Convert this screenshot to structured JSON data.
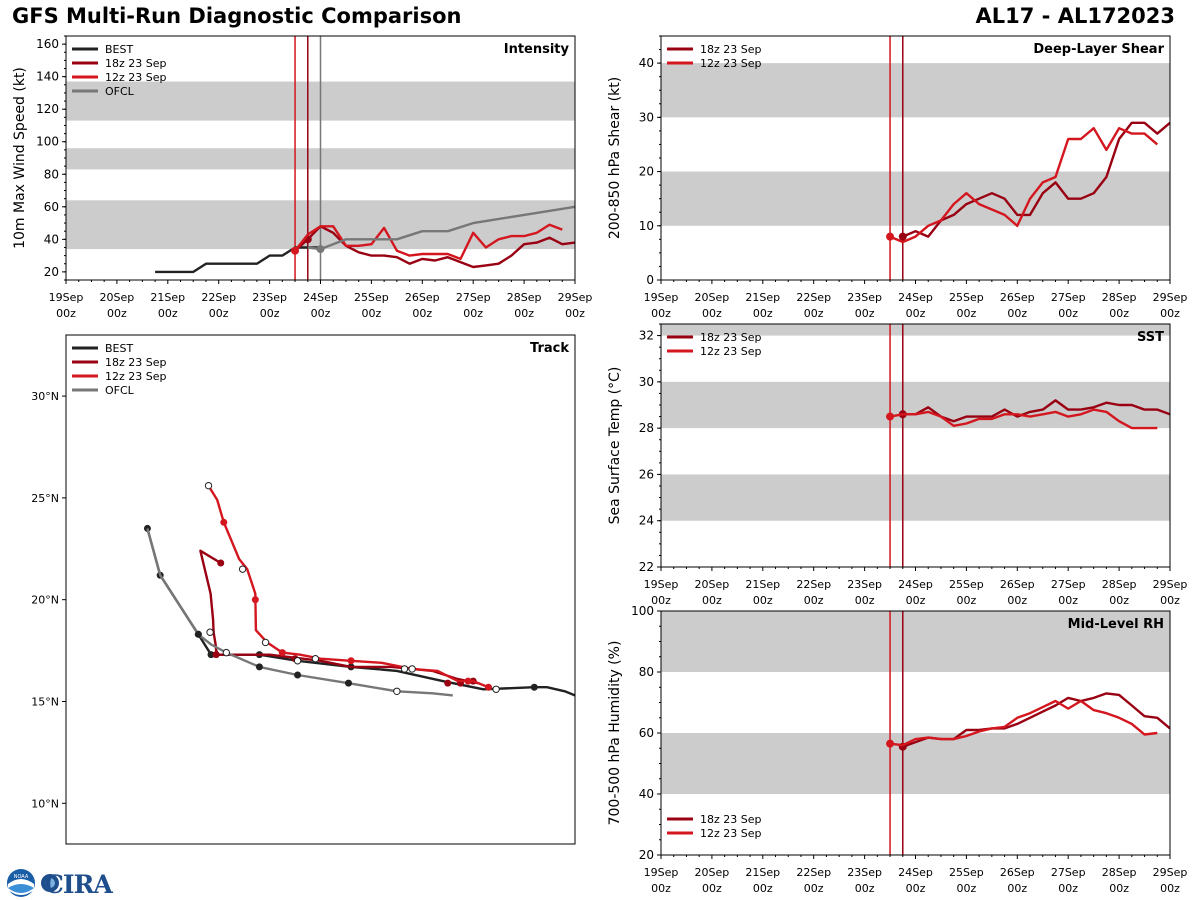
{
  "page": {
    "title": "GFS Multi-Run Diagnostic Comparison",
    "storm": "AL17 - AL172023",
    "logo_text": "CIRA",
    "noaa_text": "NOAA"
  },
  "colors": {
    "best": "#222222",
    "run18z": "#990012",
    "run12z": "#d4161f",
    "ofcl": "#777777",
    "band": "#cccccc"
  },
  "legend": {
    "best": "BEST",
    "run18z": "18z 23 Sep",
    "run12z": "12z 23 Sep",
    "ofcl": "OFCL"
  },
  "time_ticks": [
    "19Sep\n00z",
    "20Sep\n00z",
    "21Sep\n00z",
    "22Sep\n00z",
    "23Sep\n00z",
    "24Sep\n00z",
    "25Sep\n00z",
    "26Sep\n00z",
    "27Sep\n00z",
    "28Sep\n00z",
    "29Sep\n00z"
  ],
  "chart_data": [
    {
      "id": "intensity",
      "type": "line",
      "title": "Intensity",
      "ylabel": "10m Max Wind Speed (kt)",
      "xlim": [
        0,
        10
      ],
      "ylim": [
        15,
        165
      ],
      "yticks": [
        20,
        40,
        60,
        80,
        100,
        120,
        140,
        160
      ],
      "bands": [
        [
          34,
          64
        ],
        [
          83,
          96
        ],
        [
          113,
          137
        ]
      ],
      "vlines": [
        {
          "x": 4.5,
          "series": "run12z"
        },
        {
          "x": 4.75,
          "series": "run18z"
        },
        {
          "x": 5.0,
          "series": "ofcl"
        }
      ],
      "series": [
        {
          "key": "best",
          "name": "BEST",
          "x": [
            1.75,
            2.0,
            2.25,
            2.5,
            2.75,
            3.0,
            3.25,
            3.5,
            3.75,
            4.0,
            4.25,
            4.5,
            4.75,
            5.0
          ],
          "y": [
            20,
            20,
            20,
            20,
            25,
            25,
            25,
            25,
            25,
            30,
            30,
            35,
            35,
            35
          ],
          "markers": []
        },
        {
          "key": "run18z",
          "name": "18z 23 Sep",
          "x": [
            4.5,
            4.75,
            5.0,
            5.25,
            5.5,
            5.75,
            6.0,
            6.25,
            6.5,
            6.75,
            7.0,
            7.25,
            7.5,
            7.75,
            8.0,
            8.25,
            8.5,
            8.75,
            9.0,
            9.25,
            9.5,
            9.75,
            10.0
          ],
          "y": [
            33,
            40,
            48,
            44,
            36,
            32,
            30,
            30,
            29,
            25,
            28,
            27,
            29,
            26,
            23,
            24,
            25,
            30,
            37,
            38,
            41,
            37,
            38
          ],
          "markers": [
            4.75
          ]
        },
        {
          "key": "run12z",
          "name": "12z 23 Sep",
          "x": [
            4.5,
            4.75,
            5.0,
            5.25,
            5.5,
            5.75,
            6.0,
            6.25,
            6.5,
            6.75,
            7.0,
            7.25,
            7.5,
            7.75,
            8.0,
            8.25,
            8.5,
            8.75,
            9.0,
            9.25,
            9.5,
            9.75
          ],
          "y": [
            33,
            43,
            48,
            48,
            36,
            36,
            37,
            47,
            33,
            30,
            31,
            31,
            31,
            28,
            44,
            35,
            40,
            42,
            42,
            44,
            49,
            46
          ],
          "markers": [
            4.5
          ]
        },
        {
          "key": "ofcl",
          "name": "OFCL",
          "x": [
            4.75,
            5.0,
            5.5,
            6.0,
            6.5,
            7.0,
            7.5,
            8.0,
            9.0,
            10.0
          ],
          "y": [
            35,
            34,
            40,
            40,
            40,
            45,
            45,
            50,
            55,
            60
          ],
          "markers": [
            5.0
          ]
        }
      ]
    },
    {
      "id": "shear",
      "type": "line",
      "title": "Deep-Layer Shear",
      "ylabel": "200-850 hPa Shear (kt)",
      "xlim": [
        0,
        10
      ],
      "ylim": [
        0,
        45
      ],
      "yticks": [
        0,
        10,
        20,
        30,
        40
      ],
      "bands": [
        [
          10,
          20
        ],
        [
          30,
          40
        ]
      ],
      "vlines": [
        {
          "x": 4.5,
          "series": "run12z"
        },
        {
          "x": 4.75,
          "series": "run18z"
        }
      ],
      "series": [
        {
          "key": "run18z",
          "name": "18z 23 Sep",
          "x": [
            4.75,
            5.0,
            5.25,
            5.5,
            5.75,
            6.0,
            6.25,
            6.5,
            6.75,
            7.0,
            7.25,
            7.5,
            7.75,
            8.0,
            8.25,
            8.5,
            8.75,
            9.0,
            9.25,
            9.5,
            9.75,
            10.0
          ],
          "y": [
            8,
            9,
            8,
            11,
            12,
            14,
            15,
            16,
            15,
            12,
            12,
            16,
            18,
            15,
            15,
            16,
            19,
            26,
            29,
            29,
            27,
            29
          ],
          "markers": [
            4.75
          ]
        },
        {
          "key": "run12z",
          "name": "12z 23 Sep",
          "x": [
            4.5,
            4.75,
            5.0,
            5.25,
            5.5,
            5.75,
            6.0,
            6.25,
            6.5,
            6.75,
            7.0,
            7.25,
            7.5,
            7.75,
            8.0,
            8.25,
            8.5,
            8.75,
            9.0,
            9.25,
            9.5,
            9.75
          ],
          "y": [
            8,
            7,
            8,
            10,
            11,
            14,
            16,
            14,
            13,
            12,
            10,
            15,
            18,
            19,
            26,
            26,
            28,
            24,
            28,
            27,
            27,
            25
          ],
          "markers": [
            4.5
          ]
        }
      ]
    },
    {
      "id": "sst",
      "type": "line",
      "title": "SST",
      "ylabel": "Sea Surface Temp (°C)",
      "xlim": [
        0,
        10
      ],
      "ylim": [
        22,
        32.5
      ],
      "yticks": [
        22,
        24,
        26,
        28,
        30,
        32
      ],
      "bands": [
        [
          24,
          26
        ],
        [
          28,
          30
        ],
        [
          32,
          34
        ]
      ],
      "vlines": [
        {
          "x": 4.5,
          "series": "run12z"
        },
        {
          "x": 4.75,
          "series": "run18z"
        }
      ],
      "series": [
        {
          "key": "run18z",
          "name": "18z 23 Sep",
          "x": [
            4.75,
            5.0,
            5.25,
            5.5,
            5.75,
            6.0,
            6.25,
            6.5,
            6.75,
            7.0,
            7.25,
            7.5,
            7.75,
            8.0,
            8.25,
            8.5,
            8.75,
            9.0,
            9.25,
            9.5,
            9.75,
            10.0
          ],
          "y": [
            28.6,
            28.6,
            28.9,
            28.5,
            28.3,
            28.5,
            28.5,
            28.5,
            28.8,
            28.5,
            28.7,
            28.8,
            29.2,
            28.8,
            28.8,
            28.9,
            29.1,
            29.0,
            29.0,
            28.8,
            28.8,
            28.6
          ],
          "markers": [
            4.75
          ]
        },
        {
          "key": "run12z",
          "name": "12z 23 Sep",
          "x": [
            4.5,
            4.75,
            5.0,
            5.25,
            5.5,
            5.75,
            6.0,
            6.25,
            6.5,
            6.75,
            7.0,
            7.25,
            7.5,
            7.75,
            8.0,
            8.25,
            8.5,
            8.75,
            9.0,
            9.25,
            9.5,
            9.75
          ],
          "y": [
            28.5,
            28.6,
            28.6,
            28.7,
            28.5,
            28.1,
            28.2,
            28.4,
            28.4,
            28.6,
            28.6,
            28.5,
            28.6,
            28.7,
            28.5,
            28.6,
            28.8,
            28.7,
            28.3,
            28.0,
            28.0,
            28.0
          ],
          "markers": [
            4.5
          ]
        }
      ]
    },
    {
      "id": "rh",
      "type": "line",
      "title": "Mid-Level RH",
      "ylabel": "700-500 hPa Humidity (%)",
      "xlim": [
        0,
        10
      ],
      "ylim": [
        20,
        100
      ],
      "yticks": [
        20,
        40,
        60,
        80,
        100
      ],
      "bands": [
        [
          40,
          60
        ],
        [
          80,
          100
        ]
      ],
      "vlines": [
        {
          "x": 4.5,
          "series": "run12z"
        },
        {
          "x": 4.75,
          "series": "run18z"
        }
      ],
      "series": [
        {
          "key": "run18z",
          "name": "18z 23 Sep",
          "x": [
            4.75,
            5.0,
            5.25,
            5.5,
            5.75,
            6.0,
            6.25,
            6.5,
            6.75,
            7.0,
            7.25,
            7.5,
            7.75,
            8.0,
            8.25,
            8.5,
            8.75,
            9.0,
            9.25,
            9.5,
            9.75,
            10.0
          ],
          "y": [
            55.5,
            57,
            58.5,
            58,
            58,
            61,
            61,
            61.5,
            61.5,
            63,
            65,
            67,
            69,
            71.5,
            70.5,
            71.5,
            73,
            72.5,
            69,
            65.5,
            65,
            61.5
          ],
          "markers": [
            4.75
          ]
        },
        {
          "key": "run12z",
          "name": "12z 23 Sep",
          "x": [
            4.5,
            4.75,
            5.0,
            5.25,
            5.5,
            5.75,
            6.0,
            6.25,
            6.5,
            6.75,
            7.0,
            7.25,
            7.5,
            7.75,
            8.0,
            8.25,
            8.5,
            8.75,
            9.0,
            9.25,
            9.5,
            9.75
          ],
          "y": [
            56.5,
            56,
            58,
            58.5,
            58,
            58,
            59,
            60.5,
            61.5,
            62,
            65,
            66.5,
            68.5,
            70.5,
            68,
            70.5,
            67.5,
            66.5,
            65,
            63,
            59.5,
            60
          ],
          "markers": [
            4.5
          ]
        }
      ]
    },
    {
      "id": "track",
      "type": "line",
      "title": "Track",
      "ylabel": "",
      "xlim": [
        0,
        10
      ],
      "ylim": [
        8,
        33
      ],
      "yticks": [
        10,
        15,
        20,
        25,
        30
      ],
      "ytick_labels": [
        "10°N",
        "15°N",
        "20°N",
        "25°N",
        "30°N"
      ],
      "series": [
        {
          "key": "best",
          "name": "BEST",
          "x": [
            1.6,
            1.85,
            2.6,
            2.85,
            2.9,
            3.1,
            3.8,
            4.55,
            5.6,
            6.5,
            7.4,
            8.2,
            9.2,
            9.45,
            9.8,
            10.0
          ],
          "y": [
            23.5,
            21.2,
            18.3,
            17.3,
            17.3,
            17.3,
            17.3,
            17.0,
            16.7,
            16.5,
            16.0,
            15.6,
            15.7,
            15.7,
            15.5,
            15.3
          ],
          "filled": [
            [
              1.6,
              23.5
            ],
            [
              1.85,
              21.2
            ],
            [
              2.6,
              18.3
            ],
            [
              2.85,
              17.3
            ],
            [
              3.8,
              17.3
            ],
            [
              5.6,
              16.7
            ],
            [
              9.2,
              15.7
            ]
          ],
          "open": []
        },
        {
          "key": "run18z",
          "name": "18z 23 Sep",
          "x": [
            3.04,
            2.64,
            2.84,
            2.89,
            2.9,
            2.94,
            2.95,
            3.0,
            3.25,
            4.0,
            5.0,
            5.6,
            6.4,
            7.2,
            7.7,
            8.1
          ],
          "y": [
            21.8,
            22.4,
            20.3,
            19.0,
            18.4,
            17.8,
            17.5,
            17.3,
            17.3,
            17.3,
            17.0,
            16.7,
            16.7,
            16.5,
            16.1,
            15.9
          ],
          "filled": [
            [
              3.04,
              21.8
            ],
            [
              2.95,
              17.3
            ],
            [
              4.5,
              17.1
            ],
            [
              7.5,
              15.9
            ],
            [
              7.75,
              15.9
            ],
            [
              8.0,
              16.0
            ]
          ],
          "open": []
        },
        {
          "key": "run12z",
          "name": "12z 23 Sep",
          "x": [
            2.8,
            2.97,
            3.1,
            3.4,
            3.56,
            3.72,
            3.73,
            3.95,
            4.25,
            4.6,
            5.0,
            5.6,
            6.2,
            6.8,
            7.3,
            7.7,
            8.0,
            8.3
          ],
          "y": [
            25.6,
            24.9,
            23.8,
            22.0,
            21.5,
            20.3,
            18.5,
            17.9,
            17.4,
            17.3,
            17.1,
            17.0,
            16.9,
            16.6,
            16.5,
            16.0,
            16.0,
            15.7
          ],
          "filled": [
            [
              3.1,
              23.8
            ],
            [
              3.72,
              20.0
            ],
            [
              4.25,
              17.4
            ],
            [
              5.6,
              17.0
            ],
            [
              7.9,
              16.0
            ],
            [
              8.3,
              15.7
            ]
          ],
          "open": [
            [
              2.8,
              25.6
            ],
            [
              3.47,
              21.5
            ],
            [
              3.92,
              17.9
            ],
            [
              4.9,
              17.1
            ],
            [
              6.8,
              16.6
            ]
          ]
        },
        {
          "key": "ofcl",
          "name": "OFCL",
          "x": [
            1.6,
            1.85,
            2.6,
            2.85,
            3.15,
            3.8,
            4.55,
            5.55,
            6.5,
            7.2,
            7.6
          ],
          "y": [
            23.5,
            21.2,
            18.3,
            17.8,
            17.4,
            16.7,
            16.3,
            15.9,
            15.5,
            15.4,
            15.3
          ],
          "filled": [
            [
              2.6,
              18.3
            ],
            [
              3.8,
              16.7
            ],
            [
              4.55,
              16.3
            ],
            [
              5.55,
              15.9
            ]
          ],
          "open": [
            [
              2.83,
              18.4
            ],
            [
              3.15,
              17.4
            ],
            [
              4.55,
              17.0
            ],
            [
              6.5,
              15.5
            ],
            [
              6.65,
              16.6
            ],
            [
              8.45,
              15.6
            ]
          ]
        }
      ]
    }
  ]
}
